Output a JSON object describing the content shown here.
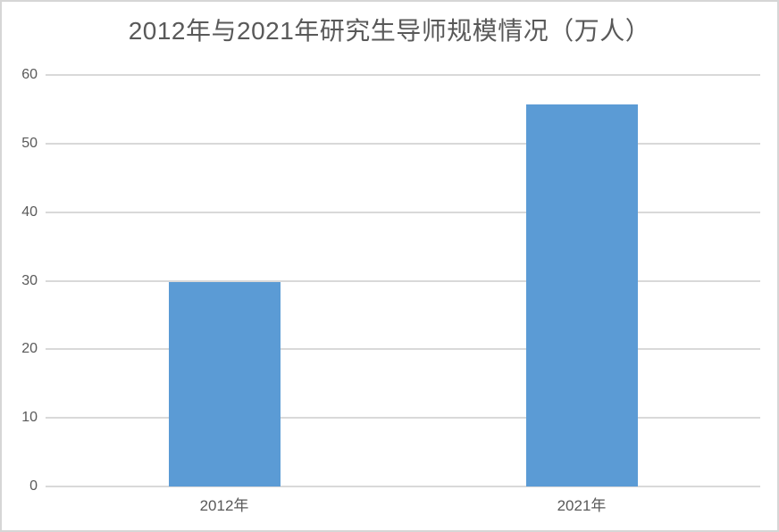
{
  "chart_data": {
    "type": "bar",
    "title": "2012年与2021年研究生导师规模情况（万人）",
    "categories": [
      "2012年",
      "2021年"
    ],
    "values": [
      29.8,
      55.7
    ],
    "yticks": [
      0,
      10,
      20,
      30,
      40,
      50,
      60
    ],
    "ylim": [
      0,
      60
    ],
    "grid": true,
    "legend": "none",
    "xlabel": "",
    "ylabel": "",
    "colors": {
      "bar": "#5B9BD5",
      "gridline": "#D9D9D9",
      "axis_text": "#595959",
      "title_text": "#595959",
      "background": "#FFFFFF",
      "frame_border": "#D6D6D6"
    }
  }
}
